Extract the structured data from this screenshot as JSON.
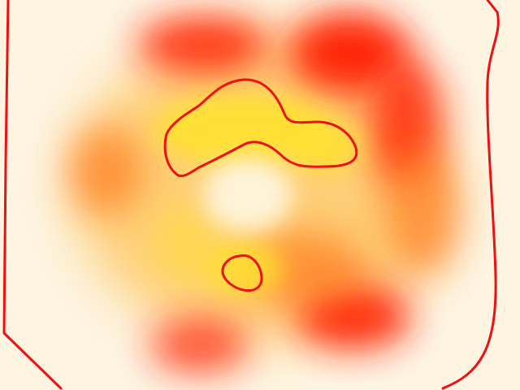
{
  "colors": {
    "background": "#fdf4e2",
    "outline": "#ee1111",
    "hot_red": "#ff1a00",
    "orange": "#ff7a1a",
    "amber": "#ffb020",
    "yellow": "#ffe033",
    "pale_yellow": "#fff2a8",
    "center_cream": "#fff6de"
  }
}
